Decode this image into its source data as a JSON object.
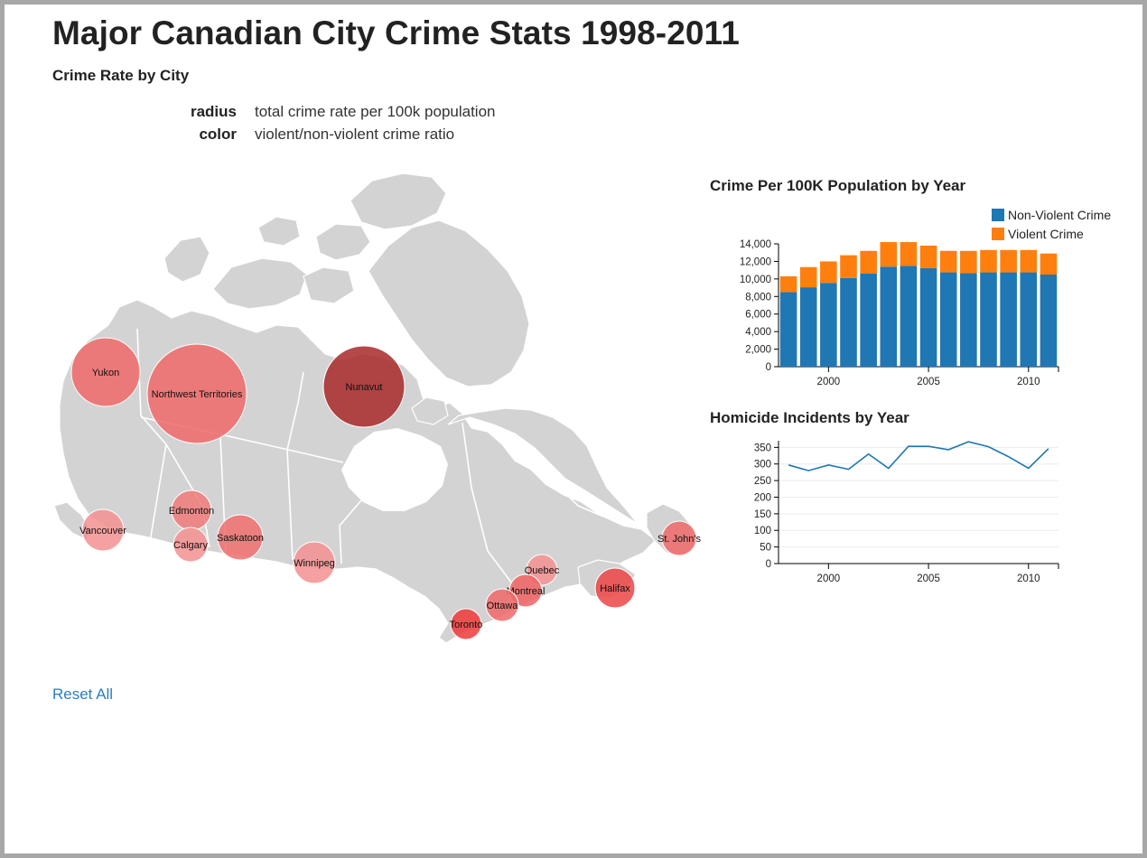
{
  "page": {
    "title": "Major Canadian City Crime Stats 1998-2011",
    "subtitle": "Crime Rate by City",
    "encoding": [
      {
        "key": "radius",
        "value": "total crime rate per 100k population"
      },
      {
        "key": "color",
        "value": "violent/non-violent crime ratio"
      }
    ],
    "reset_label": "Reset All"
  },
  "colors": {
    "map_land": "#d3d3d3",
    "non_violent": "#1f77b4",
    "violent": "#ff7f0e",
    "homicide_line": "#1f77b4",
    "link": "#2a7ec2"
  },
  "cities": [
    {
      "name": "Yukon",
      "color": "#f06868"
    },
    {
      "name": "Northwest Territories",
      "color": "#f06868"
    },
    {
      "name": "Nunavut",
      "color": "#a82828"
    },
    {
      "name": "Vancouver",
      "color": "#f59090"
    },
    {
      "name": "Edmonton",
      "color": "#f07a7a"
    },
    {
      "name": "Calgary",
      "color": "#f59090"
    },
    {
      "name": "Saskatoon",
      "color": "#f06e6e"
    },
    {
      "name": "Winnipeg",
      "color": "#f59090"
    },
    {
      "name": "Quebec",
      "color": "#f59090"
    },
    {
      "name": "Montreal",
      "color": "#f06262"
    },
    {
      "name": "Ottawa",
      "color": "#f06868"
    },
    {
      "name": "Toronto",
      "color": "#ec3a3a"
    },
    {
      "name": "Halifax",
      "color": "#ec4444"
    },
    {
      "name": "St. John's",
      "color": "#f06868"
    }
  ],
  "chart_data": [
    {
      "type": "bar",
      "stacked": true,
      "title": "Crime Per 100K Population by Year",
      "x": [
        1998,
        1999,
        2000,
        2001,
        2002,
        2003,
        2004,
        2005,
        2006,
        2007,
        2008,
        2009,
        2010,
        2011
      ],
      "series": [
        {
          "name": "Non-Violent Crime",
          "values": [
            8500,
            9050,
            9550,
            10100,
            10600,
            11400,
            11500,
            11250,
            10750,
            10650,
            10750,
            10750,
            10750,
            10500
          ]
        },
        {
          "name": "Violent Crime",
          "values": [
            1800,
            2300,
            2450,
            2600,
            2600,
            2800,
            2700,
            2550,
            2450,
            2550,
            2550,
            2550,
            2550,
            2400
          ]
        }
      ],
      "x_ticks": [
        2000,
        2005,
        2010
      ],
      "y_ticks": [
        "0",
        "2,000",
        "4,000",
        "6,000",
        "8,000",
        "10,000",
        "12,000",
        "14,000"
      ],
      "ylim": [
        0,
        14000
      ],
      "legend_position": "top-right"
    },
    {
      "type": "line",
      "title": "Homicide Incidents by Year",
      "x": [
        1998,
        1999,
        2000,
        2001,
        2002,
        2003,
        2004,
        2005,
        2006,
        2007,
        2008,
        2009,
        2010,
        2011
      ],
      "values": [
        297,
        280,
        297,
        284,
        330,
        287,
        353,
        353,
        343,
        367,
        352,
        322,
        287,
        346
      ],
      "x_ticks": [
        2000,
        2005,
        2010
      ],
      "y_ticks": [
        "0",
        "50",
        "100",
        "150",
        "200",
        "250",
        "300",
        "350"
      ],
      "ylim": [
        0,
        370
      ],
      "grid": true
    }
  ]
}
